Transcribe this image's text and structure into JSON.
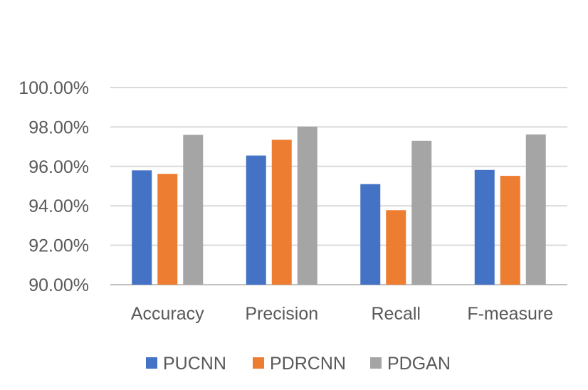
{
  "chart_data": {
    "type": "bar",
    "title": "",
    "xlabel": "",
    "ylabel": "",
    "categories": [
      "Accuracy",
      "Precision",
      "Recall",
      "F-measure"
    ],
    "series": [
      {
        "name": "PUCNN",
        "color": "#4472C4",
        "values": [
          95.8,
          96.55,
          95.1,
          95.82
        ]
      },
      {
        "name": "PDRCNN",
        "color": "#ED7D31",
        "values": [
          95.62,
          97.35,
          93.78,
          95.52
        ]
      },
      {
        "name": "PDGAN",
        "color": "#A5A5A5",
        "values": [
          97.6,
          98.02,
          97.3,
          97.62
        ]
      }
    ],
    "ylim": [
      90,
      100
    ],
    "yticks": [
      "90.00%",
      "92.00%",
      "94.00%",
      "96.00%",
      "98.00%",
      "100.00%"
    ],
    "ytick_values": [
      90,
      92,
      94,
      96,
      98,
      100
    ],
    "grid": true,
    "legend_position": "bottom"
  }
}
